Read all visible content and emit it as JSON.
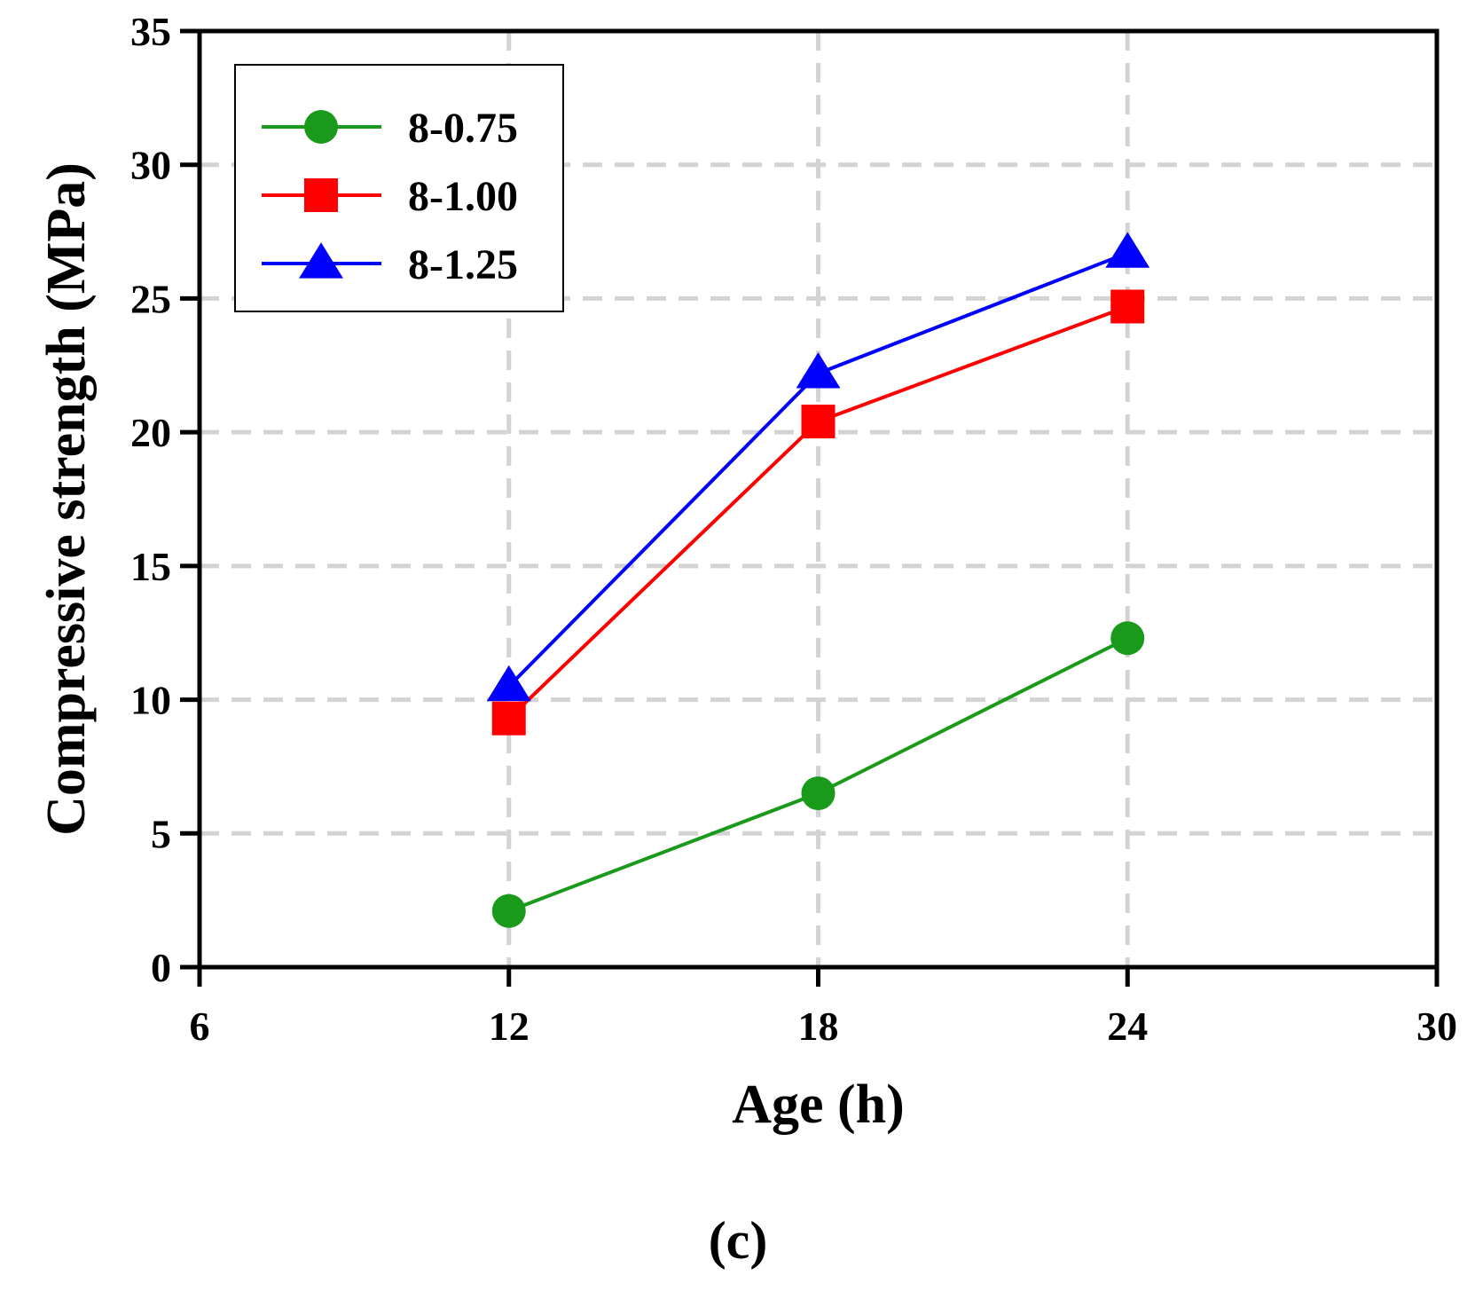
{
  "chart_data": {
    "type": "line",
    "xlabel": "Age (h)",
    "ylabel": "Compressive strength (MPa)",
    "xlim": [
      6,
      30
    ],
    "ylim": [
      0,
      35
    ],
    "xticks": [
      "6",
      "12",
      "18",
      "24",
      "30"
    ],
    "yticks": [
      "0",
      "5",
      "10",
      "15",
      "20",
      "25",
      "30",
      "35"
    ],
    "grid": true,
    "legend_position": "top-left",
    "x": [
      12,
      18,
      24
    ],
    "series": [
      {
        "name": "8-0.75",
        "values": [
          2.1,
          6.5,
          12.3
        ],
        "color": "#1a9a1a",
        "marker": "circle"
      },
      {
        "name": "8-1.00",
        "values": [
          9.3,
          20.4,
          24.7
        ],
        "color": "#ff0000",
        "marker": "square"
      },
      {
        "name": "8-1.25",
        "values": [
          10.5,
          22.2,
          26.7
        ],
        "color": "#0000ff",
        "marker": "triangle"
      }
    ],
    "panel_label": "(c)"
  }
}
